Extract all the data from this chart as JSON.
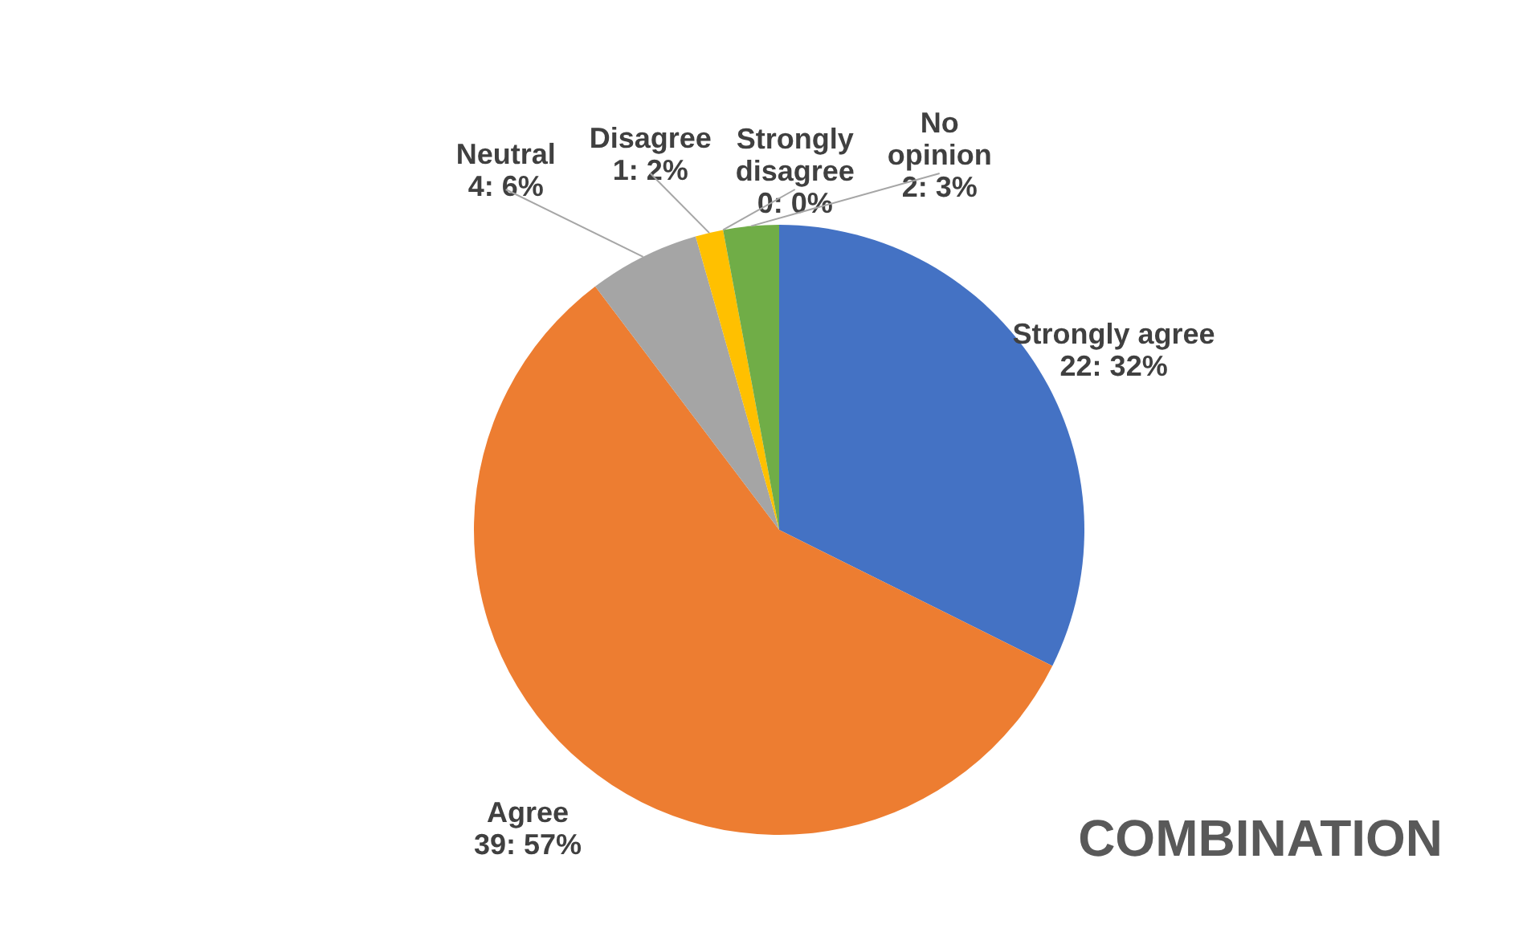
{
  "chart_data": {
    "type": "pie",
    "title": "COMBINATION",
    "categories": [
      "Strongly agree",
      "Agree",
      "Neutral",
      "Disagree",
      "Strongly disagree",
      "No opinion"
    ],
    "values": [
      22,
      39,
      4,
      1,
      0,
      2
    ],
    "colors": [
      "#4472c4",
      "#ed7d31",
      "#a5a5a5",
      "#ffc000",
      "#5b9bd5",
      "#70ad47"
    ],
    "value_labels": [
      "22: 32%",
      "39: 57%",
      "4: 6%",
      "1: 2%",
      "0: 0%",
      "2: 3%"
    ]
  }
}
